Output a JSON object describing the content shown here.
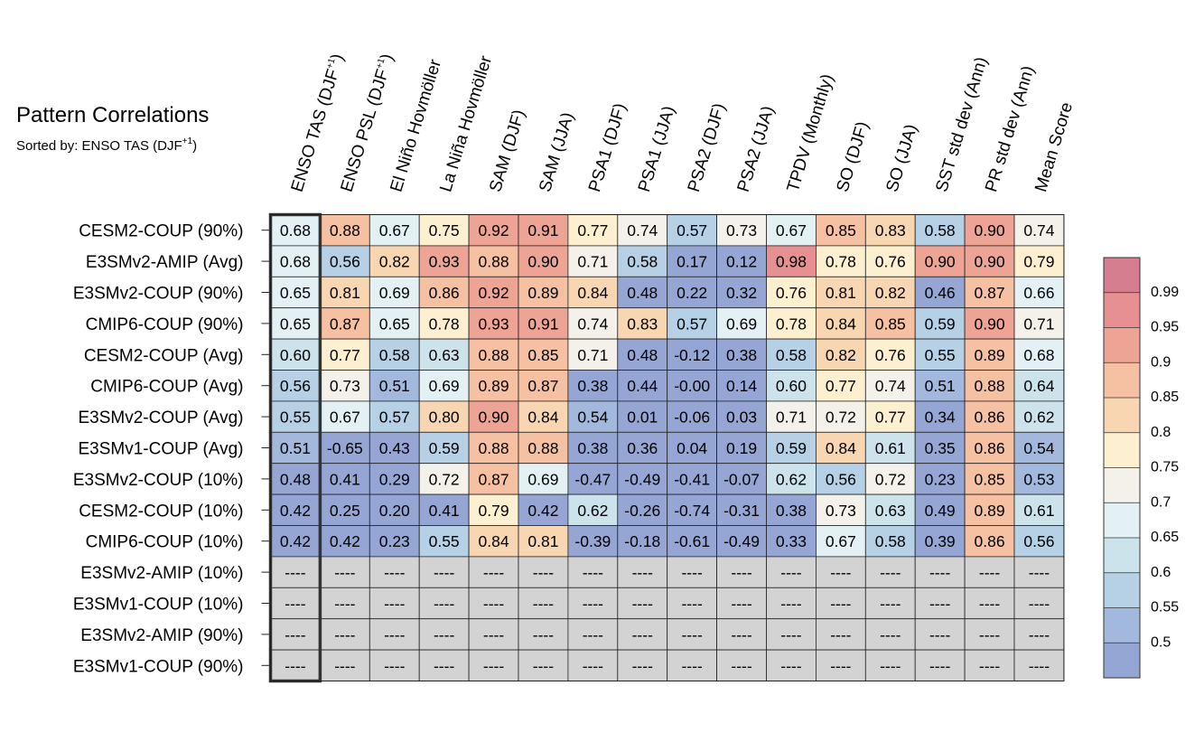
{
  "chart_data": {
    "type": "heatmap",
    "title": "Pattern Correlations",
    "subtitle": "Sorted by: ENSO TAS (DJF",
    "subtitle_sup": "+1",
    "subtitle_end": ")",
    "columns": [
      {
        "label": "ENSO TAS (DJF",
        "sup": "+1",
        "end": ")"
      },
      {
        "label": "ENSO PSL (DJF",
        "sup": "+1",
        "end": ")"
      },
      {
        "label": "El Niño Hovmöller"
      },
      {
        "label": "La Niña Hovmöller"
      },
      {
        "label": "SAM (DJF)"
      },
      {
        "label": "SAM (JJA)"
      },
      {
        "label": "PSA1 (DJF)"
      },
      {
        "label": "PSA1 (JJA)"
      },
      {
        "label": "PSA2 (DJF)"
      },
      {
        "label": "PSA2 (JJA)"
      },
      {
        "label": "TPDV (Monthly)"
      },
      {
        "label": "SO (DJF)"
      },
      {
        "label": "SO (JJA)"
      },
      {
        "label": "SST std dev (Ann)"
      },
      {
        "label": "PR std dev (Ann)"
      },
      {
        "label": "Mean Score"
      }
    ],
    "rows": [
      "CESM2-COUP (90%)",
      "E3SMv2-AMIP (Avg)",
      "E3SMv2-COUP (90%)",
      "CMIP6-COUP (90%)",
      "CESM2-COUP (Avg)",
      "CMIP6-COUP (Avg)",
      "E3SMv2-COUP (Avg)",
      "E3SMv1-COUP (Avg)",
      "E3SMv2-COUP (10%)",
      "CESM2-COUP (10%)",
      "CMIP6-COUP (10%)",
      "E3SMv2-AMIP (10%)",
      "E3SMv1-COUP (10%)",
      "E3SMv2-AMIP (90%)",
      "E3SMv1-COUP (90%)"
    ],
    "values": [
      [
        "0.68",
        "0.88",
        "0.67",
        "0.75",
        "0.92",
        "0.91",
        "0.77",
        "0.74",
        "0.57",
        "0.73",
        "0.67",
        "0.85",
        "0.83",
        "0.58",
        "0.90",
        "0.74"
      ],
      [
        "0.68",
        "0.56",
        "0.82",
        "0.93",
        "0.88",
        "0.90",
        "0.71",
        "0.58",
        "0.17",
        "0.12",
        "0.98",
        "0.78",
        "0.76",
        "0.90",
        "0.90",
        "0.79"
      ],
      [
        "0.65",
        "0.81",
        "0.69",
        "0.86",
        "0.92",
        "0.89",
        "0.84",
        "0.48",
        "0.22",
        "0.32",
        "0.76",
        "0.81",
        "0.82",
        "0.46",
        "0.87",
        "0.66"
      ],
      [
        "0.65",
        "0.87",
        "0.65",
        "0.78",
        "0.93",
        "0.91",
        "0.74",
        "0.83",
        "0.57",
        "0.69",
        "0.78",
        "0.84",
        "0.85",
        "0.59",
        "0.90",
        "0.71"
      ],
      [
        "0.60",
        "0.77",
        "0.58",
        "0.63",
        "0.88",
        "0.85",
        "0.71",
        "0.48",
        "-0.12",
        "0.38",
        "0.58",
        "0.82",
        "0.76",
        "0.55",
        "0.89",
        "0.68"
      ],
      [
        "0.56",
        "0.73",
        "0.51",
        "0.69",
        "0.89",
        "0.87",
        "0.38",
        "0.44",
        "-0.00",
        "0.14",
        "0.60",
        "0.77",
        "0.74",
        "0.51",
        "0.88",
        "0.64"
      ],
      [
        "0.55",
        "0.67",
        "0.57",
        "0.80",
        "0.90",
        "0.84",
        "0.54",
        "0.01",
        "-0.06",
        "0.03",
        "0.71",
        "0.72",
        "0.77",
        "0.34",
        "0.86",
        "0.62"
      ],
      [
        "0.51",
        "-0.65",
        "0.43",
        "0.59",
        "0.88",
        "0.88",
        "0.38",
        "0.36",
        "0.04",
        "0.19",
        "0.59",
        "0.84",
        "0.61",
        "0.35",
        "0.86",
        "0.54"
      ],
      [
        "0.48",
        "0.41",
        "0.29",
        "0.72",
        "0.87",
        "0.69",
        "-0.47",
        "-0.49",
        "-0.41",
        "-0.07",
        "0.62",
        "0.56",
        "0.72",
        "0.23",
        "0.85",
        "0.53"
      ],
      [
        "0.42",
        "0.25",
        "0.20",
        "0.41",
        "0.79",
        "0.42",
        "0.62",
        "-0.26",
        "-0.74",
        "-0.31",
        "0.38",
        "0.73",
        "0.63",
        "0.49",
        "0.89",
        "0.61"
      ],
      [
        "0.42",
        "0.42",
        "0.23",
        "0.55",
        "0.84",
        "0.81",
        "-0.39",
        "-0.18",
        "-0.61",
        "-0.49",
        "0.33",
        "0.67",
        "0.58",
        "0.39",
        "0.86",
        "0.56"
      ],
      [
        "----",
        "----",
        "----",
        "----",
        "----",
        "----",
        "----",
        "----",
        "----",
        "----",
        "----",
        "----",
        "----",
        "----",
        "----",
        "----"
      ],
      [
        "----",
        "----",
        "----",
        "----",
        "----",
        "----",
        "----",
        "----",
        "----",
        "----",
        "----",
        "----",
        "----",
        "----",
        "----",
        "----"
      ],
      [
        "----",
        "----",
        "----",
        "----",
        "----",
        "----",
        "----",
        "----",
        "----",
        "----",
        "----",
        "----",
        "----",
        "----",
        "----",
        "----"
      ],
      [
        "----",
        "----",
        "----",
        "----",
        "----",
        "----",
        "----",
        "----",
        "----",
        "----",
        "----",
        "----",
        "----",
        "----",
        "----",
        "----"
      ]
    ],
    "missing_color": "#d3d3d3",
    "highlighted_column": 0,
    "colorbar": {
      "levels": [
        "0.99",
        "0.95",
        "0.9",
        "0.85",
        "0.8",
        "0.75",
        "0.7",
        "0.65",
        "0.6",
        "0.55",
        "0.5"
      ],
      "thresholds": [
        0.99,
        0.95,
        0.9,
        0.85,
        0.8,
        0.75,
        0.7,
        0.65,
        0.6,
        0.55,
        0.5
      ],
      "colors": [
        "#d47e8f",
        "#e69092",
        "#eda494",
        "#f6c0a2",
        "#f7d6b1",
        "#fdf0d0",
        "#f3f1e9",
        "#e3f1f5",
        "#cde3ec",
        "#b6d1e5",
        "#a2b8dc",
        "#95a6d4"
      ]
    }
  }
}
